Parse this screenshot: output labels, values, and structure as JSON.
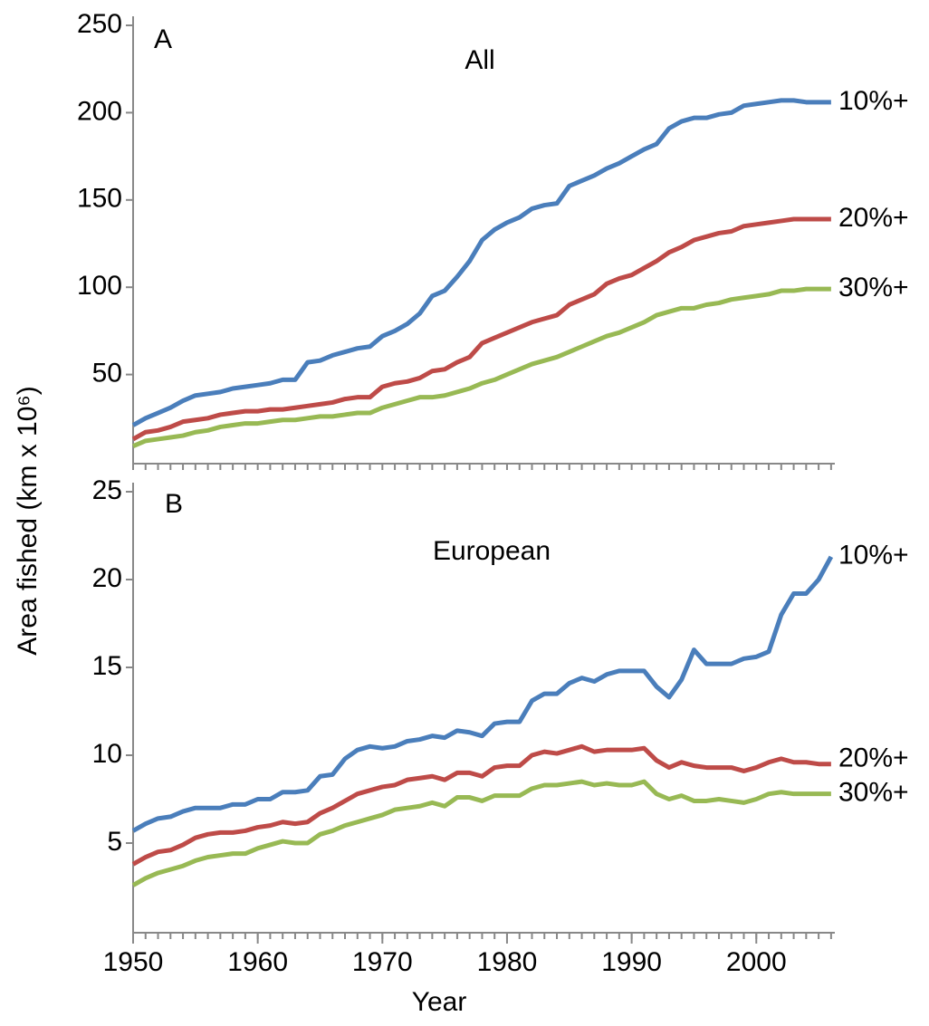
{
  "chart_data": [
    {
      "type": "line",
      "panel": "A",
      "subtitle": "All",
      "ylabel": "Area fished (km x 10⁶)",
      "x": [
        1950,
        1951,
        1952,
        1953,
        1954,
        1955,
        1956,
        1957,
        1958,
        1959,
        1960,
        1961,
        1962,
        1963,
        1964,
        1965,
        1966,
        1967,
        1968,
        1969,
        1970,
        1971,
        1972,
        1973,
        1974,
        1975,
        1976,
        1977,
        1978,
        1979,
        1980,
        1981,
        1982,
        1983,
        1984,
        1985,
        1986,
        1987,
        1988,
        1989,
        1990,
        1991,
        1992,
        1993,
        1994,
        1995,
        1996,
        1997,
        1998,
        1999,
        2000,
        2001,
        2002,
        2003,
        2004,
        2005,
        2006
      ],
      "xlim": [
        1950,
        2006.3
      ],
      "ylim": [
        0,
        250
      ],
      "yticks": [
        50,
        100,
        150,
        200,
        250
      ],
      "grid": false,
      "series": [
        {
          "name": "10%+",
          "color": "#4a7ebb",
          "values": [
            21,
            25,
            28,
            31,
            35,
            38,
            39,
            40,
            42,
            43,
            44,
            45,
            47,
            47,
            57,
            58,
            61,
            63,
            65,
            66,
            72,
            75,
            79,
            85,
            95,
            98,
            106,
            115,
            127,
            133,
            137,
            140,
            145,
            147,
            148,
            158,
            161,
            164,
            168,
            171,
            175,
            179,
            182,
            191,
            195,
            197,
            197,
            199,
            200,
            204,
            205,
            206,
            207,
            207,
            206,
            206,
            206
          ]
        },
        {
          "name": "20%+",
          "color": "#be4b48",
          "values": [
            13,
            17,
            18,
            20,
            23,
            24,
            25,
            27,
            28,
            29,
            29,
            30,
            30,
            31,
            32,
            33,
            34,
            36,
            37,
            37,
            43,
            45,
            46,
            48,
            52,
            53,
            57,
            60,
            68,
            71,
            74,
            77,
            80,
            82,
            84,
            90,
            93,
            96,
            102,
            105,
            107,
            111,
            115,
            120,
            123,
            127,
            129,
            131,
            132,
            135,
            136,
            137,
            138,
            139,
            139,
            139,
            139
          ]
        },
        {
          "name": "30%+",
          "color": "#98b954",
          "values": [
            9,
            12,
            13,
            14,
            15,
            17,
            18,
            20,
            21,
            22,
            22,
            23,
            24,
            24,
            25,
            26,
            26,
            27,
            28,
            28,
            31,
            33,
            35,
            37,
            37,
            38,
            40,
            42,
            45,
            47,
            50,
            53,
            56,
            58,
            60,
            63,
            66,
            69,
            72,
            74,
            77,
            80,
            84,
            86,
            88,
            88,
            90,
            91,
            93,
            94,
            95,
            96,
            98,
            98,
            99,
            99,
            99
          ]
        }
      ]
    },
    {
      "type": "line",
      "panel": "B",
      "subtitle": "European",
      "xlabel": "Year",
      "x": [
        1950,
        1951,
        1952,
        1953,
        1954,
        1955,
        1956,
        1957,
        1958,
        1959,
        1960,
        1961,
        1962,
        1963,
        1964,
        1965,
        1966,
        1967,
        1968,
        1969,
        1970,
        1971,
        1972,
        1973,
        1974,
        1975,
        1976,
        1977,
        1978,
        1979,
        1980,
        1981,
        1982,
        1983,
        1984,
        1985,
        1986,
        1987,
        1988,
        1989,
        1990,
        1991,
        1992,
        1993,
        1994,
        1995,
        1996,
        1997,
        1998,
        1999,
        2000,
        2001,
        2002,
        2003,
        2004,
        2005,
        2006
      ],
      "xlim": [
        1950,
        2006.3
      ],
      "xticks": [
        1950,
        1960,
        1970,
        1980,
        1990,
        2000
      ],
      "ylim": [
        0,
        25
      ],
      "yticks": [
        5,
        10,
        15,
        20,
        25
      ],
      "grid": false,
      "series": [
        {
          "name": "10%+",
          "color": "#4a7ebb",
          "values": [
            5.7,
            6.1,
            6.4,
            6.5,
            6.8,
            7.0,
            7.0,
            7.0,
            7.2,
            7.2,
            7.5,
            7.5,
            7.9,
            7.9,
            8.0,
            8.8,
            8.9,
            9.8,
            10.3,
            10.5,
            10.4,
            10.5,
            10.8,
            10.9,
            11.1,
            11.0,
            11.4,
            11.3,
            11.1,
            11.8,
            11.9,
            11.9,
            13.1,
            13.5,
            13.5,
            14.1,
            14.4,
            14.2,
            14.6,
            14.8,
            14.8,
            14.8,
            13.9,
            13.3,
            14.3,
            16.0,
            15.2,
            15.2,
            15.2,
            15.5,
            15.6,
            15.9,
            18.0,
            19.2,
            19.2,
            20.0,
            21.3
          ]
        },
        {
          "name": "20%+",
          "color": "#be4b48",
          "values": [
            3.8,
            4.2,
            4.5,
            4.6,
            4.9,
            5.3,
            5.5,
            5.6,
            5.6,
            5.7,
            5.9,
            6.0,
            6.2,
            6.1,
            6.2,
            6.7,
            7.0,
            7.4,
            7.8,
            8.0,
            8.2,
            8.3,
            8.6,
            8.7,
            8.8,
            8.6,
            9.0,
            9.0,
            8.8,
            9.3,
            9.4,
            9.4,
            10.0,
            10.2,
            10.1,
            10.3,
            10.5,
            10.2,
            10.3,
            10.3,
            10.3,
            10.4,
            9.7,
            9.3,
            9.6,
            9.4,
            9.3,
            9.3,
            9.3,
            9.1,
            9.3,
            9.6,
            9.8,
            9.6,
            9.6,
            9.5,
            9.5
          ]
        },
        {
          "name": "30%+",
          "color": "#98b954",
          "values": [
            2.6,
            3.0,
            3.3,
            3.5,
            3.7,
            4.0,
            4.2,
            4.3,
            4.4,
            4.4,
            4.7,
            4.9,
            5.1,
            5.0,
            5.0,
            5.5,
            5.7,
            6.0,
            6.2,
            6.4,
            6.6,
            6.9,
            7.0,
            7.1,
            7.3,
            7.1,
            7.6,
            7.6,
            7.4,
            7.7,
            7.7,
            7.7,
            8.1,
            8.3,
            8.3,
            8.4,
            8.5,
            8.3,
            8.4,
            8.3,
            8.3,
            8.5,
            7.8,
            7.5,
            7.7,
            7.4,
            7.4,
            7.5,
            7.4,
            7.3,
            7.5,
            7.8,
            7.9,
            7.8,
            7.8,
            7.8,
            7.8
          ]
        }
      ]
    }
  ]
}
